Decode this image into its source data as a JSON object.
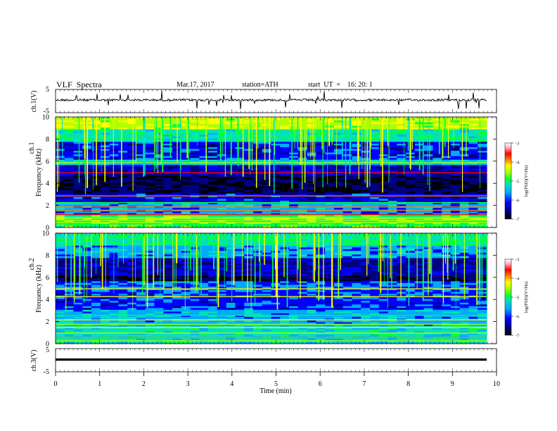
{
  "header": {
    "title": "VLF  Spectra",
    "date": "Mar.17, 2017",
    "station": "station=ATH",
    "start": "start  UT  =    16: 20: 1"
  },
  "colors": {
    "colorscale": [
      "#000000",
      "#000080",
      "#0000ff",
      "#00aaff",
      "#00e0c0",
      "#00ff40",
      "#b0ff00",
      "#ffff00",
      "#ff8000",
      "#ff0000",
      "#ffb0c0",
      "#ffffff"
    ]
  },
  "chart_data": [
    {
      "panel": "ch1",
      "type": "line",
      "ylabel": "ch.1(V)",
      "ylim": [
        -5,
        5
      ],
      "y_ticks": [
        "5",
        "-5"
      ],
      "xlim": [
        0,
        10
      ],
      "note": "time-domain waveform"
    },
    {
      "panel": "ch1-spectrogram",
      "type": "heatmap",
      "ylabel_top": "ch.1",
      "ylabel": "Frequency  (kHz)",
      "ylim": [
        0,
        10
      ],
      "y_ticks": [
        "0",
        "2",
        "4",
        "6",
        "8",
        "10"
      ],
      "xlim": [
        0,
        10
      ],
      "colorbar": {
        "label": "log(PSD)(V²/Hz)",
        "range": [
          -7,
          -3
        ],
        "ticks": [
          "-3",
          "-4",
          "-5",
          "-6",
          "-7"
        ]
      }
    },
    {
      "panel": "ch2-spectrogram",
      "type": "heatmap",
      "ylabel_top": "ch.2",
      "ylabel": "Frequency  (kHz)",
      "ylim": [
        0,
        10
      ],
      "y_ticks": [
        "0",
        "2",
        "4",
        "6",
        "8",
        "10"
      ],
      "xlim": [
        0,
        10
      ],
      "colorbar": {
        "label": "log(PSD)(V²/Hz)",
        "range": [
          -7,
          -3
        ],
        "ticks": [
          "-3",
          "-4",
          "-5",
          "-6",
          "-7"
        ]
      }
    },
    {
      "panel": "ch3",
      "type": "line",
      "ylabel": "ch.3(V)",
      "ylim": [
        -5,
        5
      ],
      "y_ticks": [
        "5",
        "-5"
      ],
      "xlim": [
        0,
        10
      ],
      "x_ticks": [
        "0",
        "1",
        "2",
        "3",
        "4",
        "5",
        "6",
        "7",
        "8",
        "9",
        "10"
      ],
      "xlabel": "Time  (min)",
      "note": "flat waveform"
    }
  ]
}
